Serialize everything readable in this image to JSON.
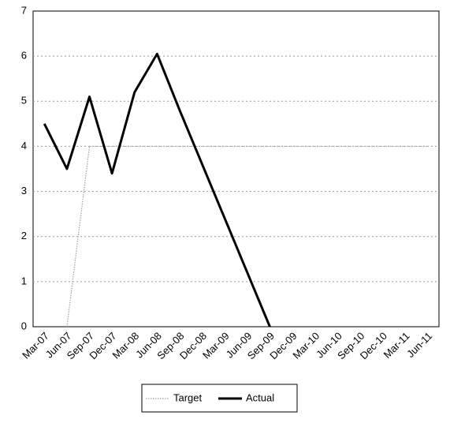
{
  "chart_data": {
    "type": "line",
    "categories": [
      "Mar-07",
      "Jun-07",
      "Sep-07",
      "Dec-07",
      "Mar-08",
      "Jun-08",
      "Sep-08",
      "Dec-08",
      "Mar-09",
      "Jun-09",
      "Sep-09",
      "Dec-09",
      "Mar-10",
      "Jun-10",
      "Sep-10",
      "Dec-10",
      "Mar-11",
      "Jun-11"
    ],
    "series": [
      {
        "name": "Target",
        "color": "#a0a0a0",
        "dash": "dotted",
        "values": [
          null,
          0,
          4,
          4,
          4,
          4,
          4,
          4,
          4,
          4,
          4,
          4,
          4,
          4,
          4,
          4,
          4,
          4
        ]
      },
      {
        "name": "Actual",
        "color": "#000000",
        "dash": "solid",
        "values": [
          4.5,
          3.5,
          5.1,
          3.4,
          5.2,
          6.05,
          4.8,
          3.6,
          2.4,
          1.2,
          0,
          null,
          null,
          null,
          null,
          null,
          null,
          null
        ]
      }
    ],
    "ylim": [
      0,
      7
    ],
    "yticks": [
      0,
      1,
      2,
      3,
      4,
      5,
      6,
      7
    ],
    "grid": true,
    "legend": "bottom"
  }
}
